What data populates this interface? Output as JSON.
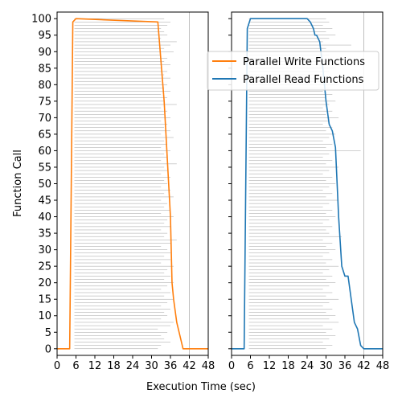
{
  "chart_data": {
    "type": "line",
    "xlabel": "Execution Time (sec)",
    "ylabel": "Function Call",
    "xlim": [
      0,
      48
    ],
    "ylim": [
      -2,
      102
    ],
    "xticks": [
      0,
      6,
      12,
      18,
      24,
      30,
      36,
      42,
      48
    ],
    "yticks": [
      0,
      5,
      10,
      15,
      20,
      25,
      30,
      35,
      40,
      45,
      50,
      55,
      60,
      65,
      70,
      75,
      80,
      85,
      90,
      95,
      100
    ],
    "grid_x": [
      42
    ],
    "legend": {
      "placement": "top-right",
      "entries": [
        "Parallel Write Functions",
        "Parallel Read Functions"
      ]
    },
    "panels": [
      {
        "series": {
          "name": "Parallel Write Functions",
          "color": "#ff7f0e",
          "x": [
            0,
            4,
            5,
            6,
            6,
            32,
            34,
            36,
            36.5,
            37,
            38,
            39,
            40,
            48
          ],
          "y": [
            0,
            0,
            99,
            100,
            100,
            99,
            75,
            40,
            20,
            15,
            8,
            4,
            0,
            0
          ]
        },
        "call_bars": {
          "start": 5.5,
          "ends": [
            32,
            33,
            36,
            34,
            33,
            35,
            32,
            36,
            37,
            33,
            35,
            34,
            36,
            33,
            35,
            37,
            34,
            36,
            33,
            35,
            37,
            34,
            36,
            34,
            35,
            37,
            33,
            36,
            34,
            36,
            35,
            33,
            36,
            38,
            34,
            35,
            33,
            36,
            34,
            35,
            37,
            33,
            36,
            34,
            35,
            33,
            37,
            34,
            36,
            33,
            35,
            34,
            36,
            33,
            35,
            34,
            38,
            33,
            35,
            34,
            36,
            33,
            35,
            34,
            37,
            33,
            36,
            34,
            35,
            33,
            36,
            34,
            35,
            33,
            38,
            34,
            35,
            33,
            36,
            34,
            35,
            33,
            36,
            34,
            35,
            33,
            36,
            34,
            35,
            33,
            37,
            34,
            36,
            38,
            33,
            35,
            34,
            33,
            35,
            36,
            34
          ]
        }
      },
      {
        "series": {
          "name": "Parallel Read Functions",
          "color": "#1f77b4",
          "x": [
            0,
            4,
            5,
            6,
            24,
            25,
            26,
            26.5,
            27,
            28,
            29,
            30,
            31,
            32,
            33,
            34,
            35,
            36,
            37,
            38,
            39,
            40,
            41,
            42,
            48
          ],
          "y": [
            0,
            0,
            97,
            100,
            100,
            99,
            97,
            95,
            95,
            93,
            85,
            75,
            68,
            66,
            61,
            40,
            25,
            22,
            22,
            15,
            8,
            6,
            1,
            0,
            0
          ]
        },
        "call_bars": {
          "start": 5.5,
          "ends": [
            30,
            32,
            29,
            31,
            33,
            30,
            32,
            29,
            34,
            31,
            33,
            30,
            32,
            29,
            31,
            34,
            30,
            32,
            29,
            31,
            33,
            30,
            32,
            29,
            31,
            34,
            30,
            32,
            29,
            31,
            33,
            30,
            32,
            29,
            35,
            31,
            30,
            32,
            29,
            31,
            33,
            30,
            32,
            29,
            31,
            34,
            30,
            32,
            29,
            31,
            33,
            30,
            32,
            29,
            31,
            34,
            30,
            32,
            29,
            31,
            41,
            30,
            32,
            29,
            31,
            33,
            30,
            32,
            29,
            31,
            34,
            30,
            32,
            29,
            31,
            33,
            30,
            32,
            29,
            31,
            34,
            30,
            32,
            29,
            31,
            33,
            30,
            32,
            29,
            31,
            34,
            30,
            38,
            29,
            31,
            33,
            30,
            32,
            29,
            31,
            30
          ]
        }
      }
    ]
  }
}
